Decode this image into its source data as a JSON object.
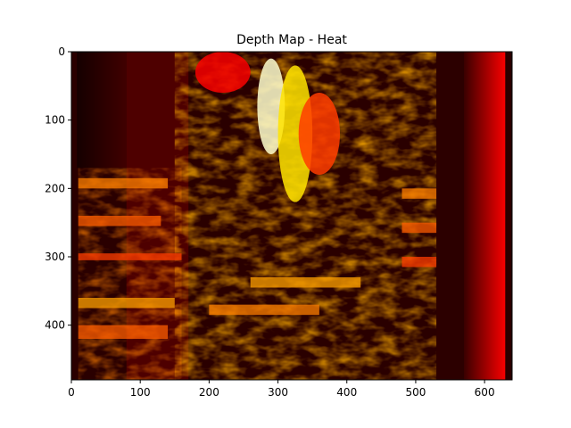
{
  "chart_data": {
    "type": "heatmap",
    "title": "Depth  Map - Heat",
    "xlabel": "",
    "ylabel": "",
    "colormap": "hot",
    "image_size": [
      640,
      480
    ],
    "xlim": [
      0,
      640
    ],
    "ylim": [
      480,
      0
    ],
    "x_ticks": [
      0,
      100,
      200,
      300,
      400,
      500,
      600
    ],
    "y_ticks": [
      0,
      100,
      200,
      300,
      400
    ],
    "grid": false,
    "legend": "none",
    "colors": {
      "hot_dark": "#0a0000",
      "hot_mid": "#c01a00",
      "hot_bright": "#ffd24a",
      "hot_white": "#ffffff",
      "axis": "#000000"
    },
    "regions": [
      {
        "x": [
          8,
          80
        ],
        "y": [
          0,
          170
        ],
        "level": 0.08,
        "kind": "fade-right"
      },
      {
        "x": [
          80,
          170
        ],
        "y": [
          0,
          480
        ],
        "level": 0.1,
        "kind": "flat"
      },
      {
        "x": [
          530,
          570
        ],
        "y": [
          0,
          480
        ],
        "level": 0.05,
        "kind": "flat"
      },
      {
        "x": [
          570,
          630
        ],
        "y": [
          0,
          480
        ],
        "level": 0.35,
        "kind": "fade-right"
      }
    ],
    "bright_streaks": [
      {
        "x": [
          270,
          310
        ],
        "y": [
          10,
          150
        ],
        "level": 0.95
      },
      {
        "x": [
          300,
          350
        ],
        "y": [
          20,
          220
        ],
        "level": 0.7
      },
      {
        "x": [
          180,
          260
        ],
        "y": [
          0,
          60
        ],
        "level": 0.35
      },
      {
        "x": [
          330,
          390
        ],
        "y": [
          60,
          180
        ],
        "level": 0.45
      }
    ],
    "bands": [
      {
        "x": [
          10,
          140
        ],
        "y": [
          185,
          200
        ],
        "level": 0.55
      },
      {
        "x": [
          10,
          130
        ],
        "y": [
          240,
          255
        ],
        "level": 0.5
      },
      {
        "x": [
          10,
          160
        ],
        "y": [
          295,
          305
        ],
        "level": 0.45
      },
      {
        "x": [
          10,
          150
        ],
        "y": [
          360,
          375
        ],
        "level": 0.6
      },
      {
        "x": [
          10,
          140
        ],
        "y": [
          400,
          420
        ],
        "level": 0.5
      },
      {
        "x": [
          480,
          530
        ],
        "y": [
          200,
          215
        ],
        "level": 0.55
      },
      {
        "x": [
          480,
          530
        ],
        "y": [
          250,
          265
        ],
        "level": 0.5
      },
      {
        "x": [
          480,
          530
        ],
        "y": [
          300,
          315
        ],
        "level": 0.45
      },
      {
        "x": [
          260,
          420
        ],
        "y": [
          330,
          345
        ],
        "level": 0.6
      },
      {
        "x": [
          200,
          360
        ],
        "y": [
          370,
          385
        ],
        "level": 0.55
      }
    ]
  }
}
